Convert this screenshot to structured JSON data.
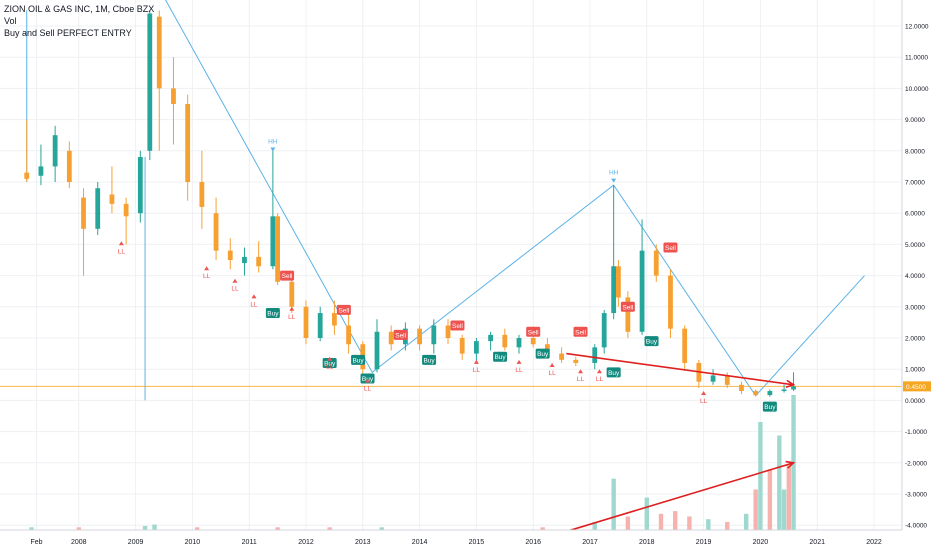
{
  "legend": {
    "symbol_line": "ZION OIL & GAS INC, 1M, Cboe BZX",
    "vol_label": "Vol",
    "indicator_label": "Buy and Sell PERFECT ENTRY"
  },
  "colors": {
    "up": "#26a69a",
    "down": "#f7a032",
    "wick": "#8a8a8a",
    "trendline": "#5bb3e8",
    "arrow": "#e02020",
    "buy": "#138a7e",
    "sell": "#ef5350",
    "marker": "#ef5350",
    "price_line": "#f5a623"
  },
  "price_axis": {
    "ticks": [
      "12.0000",
      "11.0000",
      "10.0000",
      "9.0000",
      "8.0000",
      "7.0000",
      "6.0000",
      "5.0000",
      "4.0000",
      "3.0000",
      "2.0000",
      "1.0000",
      "0.0000",
      "-1.0000",
      "-2.0000",
      "-3.0000",
      "-4.0000"
    ],
    "last_price": "0.4500"
  },
  "time_axis": {
    "ticks": [
      "Feb",
      "2008",
      "2009",
      "2010",
      "2011",
      "2012",
      "2013",
      "2014",
      "2015",
      "2016",
      "2017",
      "2018",
      "2019",
      "2020",
      "2021",
      "2022"
    ]
  },
  "chart_data": {
    "type": "candlestick",
    "title": "ZION OIL & GAS INC, 1M, Cboe BZX",
    "interval": "1M",
    "ylim": [
      -4,
      12.5
    ],
    "x_range": [
      "2007-01",
      "2022-06"
    ],
    "grid": true,
    "price_line": 0.45,
    "series": [
      {
        "name": "price",
        "type": "candles",
        "points": [
          {
            "t": "2007-02",
            "o": 7.3,
            "h": 9.0,
            "l": 7.0,
            "c": 7.1
          },
          {
            "t": "2007-05",
            "o": 7.2,
            "h": 8.2,
            "l": 6.9,
            "c": 7.5
          },
          {
            "t": "2007-08",
            "o": 7.5,
            "h": 8.8,
            "l": 7.0,
            "c": 8.5
          },
          {
            "t": "2007-11",
            "o": 8.0,
            "h": 8.3,
            "l": 6.8,
            "c": 7.0
          },
          {
            "t": "2008-02",
            "o": 6.5,
            "h": 6.8,
            "l": 4.0,
            "c": 5.5
          },
          {
            "t": "2008-05",
            "o": 5.5,
            "h": 7.0,
            "l": 5.3,
            "c": 6.8
          },
          {
            "t": "2008-08",
            "o": 6.6,
            "h": 7.5,
            "l": 6.0,
            "c": 6.3
          },
          {
            "t": "2008-11",
            "o": 6.3,
            "h": 6.5,
            "l": 5.0,
            "c": 5.9
          },
          {
            "t": "2009-02",
            "o": 6.0,
            "h": 8.0,
            "l": 5.7,
            "c": 7.8
          },
          {
            "t": "2009-04",
            "o": 8.0,
            "h": 12.5,
            "l": 7.7,
            "c": 12.4
          },
          {
            "t": "2009-06",
            "o": 12.3,
            "h": 12.5,
            "l": 8.0,
            "c": 10.0
          },
          {
            "t": "2009-09",
            "o": 10.0,
            "h": 11.0,
            "l": 8.2,
            "c": 9.5
          },
          {
            "t": "2009-12",
            "o": 9.5,
            "h": 9.8,
            "l": 6.4,
            "c": 7.0
          },
          {
            "t": "2010-03",
            "o": 7.0,
            "h": 8.0,
            "l": 5.5,
            "c": 6.2
          },
          {
            "t": "2010-06",
            "o": 6.0,
            "h": 6.5,
            "l": 4.5,
            "c": 4.8
          },
          {
            "t": "2010-09",
            "o": 4.8,
            "h": 5.2,
            "l": 4.2,
            "c": 4.5
          },
          {
            "t": "2010-12",
            "o": 4.4,
            "h": 4.9,
            "l": 4.0,
            "c": 4.6
          },
          {
            "t": "2011-03",
            "o": 4.6,
            "h": 5.1,
            "l": 4.1,
            "c": 4.3
          },
          {
            "t": "2011-06",
            "o": 4.3,
            "h": 8.0,
            "l": 4.2,
            "c": 5.9
          },
          {
            "t": "2011-07",
            "o": 5.9,
            "h": 6.0,
            "l": 3.7,
            "c": 3.8
          },
          {
            "t": "2011-10",
            "o": 3.8,
            "h": 4.0,
            "l": 2.8,
            "c": 3.0
          },
          {
            "t": "2012-01",
            "o": 3.0,
            "h": 3.2,
            "l": 1.8,
            "c": 2.0
          },
          {
            "t": "2012-04",
            "o": 2.0,
            "h": 3.0,
            "l": 1.9,
            "c": 2.8
          },
          {
            "t": "2012-07",
            "o": 2.8,
            "h": 3.2,
            "l": 2.1,
            "c": 2.4
          },
          {
            "t": "2012-10",
            "o": 2.4,
            "h": 3.0,
            "l": 1.5,
            "c": 1.8
          },
          {
            "t": "2013-01",
            "o": 1.8,
            "h": 1.9,
            "l": 0.8,
            "c": 1.0
          },
          {
            "t": "2013-04",
            "o": 1.0,
            "h": 2.6,
            "l": 0.9,
            "c": 2.2
          },
          {
            "t": "2013-07",
            "o": 2.2,
            "h": 2.4,
            "l": 1.6,
            "c": 1.8
          },
          {
            "t": "2013-10",
            "o": 1.8,
            "h": 2.5,
            "l": 1.6,
            "c": 2.3
          },
          {
            "t": "2014-01",
            "o": 2.3,
            "h": 2.4,
            "l": 1.6,
            "c": 1.8
          },
          {
            "t": "2014-04",
            "o": 1.8,
            "h": 2.6,
            "l": 1.5,
            "c": 2.4
          },
          {
            "t": "2014-07",
            "o": 2.4,
            "h": 2.6,
            "l": 1.8,
            "c": 2.0
          },
          {
            "t": "2014-10",
            "o": 2.0,
            "h": 2.1,
            "l": 1.3,
            "c": 1.5
          },
          {
            "t": "2015-01",
            "o": 1.5,
            "h": 2.0,
            "l": 1.2,
            "c": 1.9
          },
          {
            "t": "2015-04",
            "o": 1.9,
            "h": 2.2,
            "l": 1.6,
            "c": 2.1
          },
          {
            "t": "2015-07",
            "o": 2.1,
            "h": 2.3,
            "l": 1.6,
            "c": 1.7
          },
          {
            "t": "2015-10",
            "o": 1.7,
            "h": 2.1,
            "l": 1.5,
            "c": 2.0
          },
          {
            "t": "2016-01",
            "o": 2.0,
            "h": 2.2,
            "l": 1.7,
            "c": 1.8
          },
          {
            "t": "2016-04",
            "o": 1.8,
            "h": 2.0,
            "l": 1.4,
            "c": 1.5
          },
          {
            "t": "2016-07",
            "o": 1.5,
            "h": 1.7,
            "l": 1.2,
            "c": 1.3
          },
          {
            "t": "2016-10",
            "o": 1.3,
            "h": 1.4,
            "l": 1.1,
            "c": 1.2
          },
          {
            "t": "2017-02",
            "o": 1.2,
            "h": 1.8,
            "l": 1.0,
            "c": 1.7
          },
          {
            "t": "2017-04",
            "o": 1.7,
            "h": 2.9,
            "l": 1.5,
            "c": 2.8
          },
          {
            "t": "2017-06",
            "o": 2.8,
            "h": 6.9,
            "l": 2.6,
            "c": 4.3
          },
          {
            "t": "2017-07",
            "o": 4.3,
            "h": 4.5,
            "l": 3.0,
            "c": 3.3
          },
          {
            "t": "2017-09",
            "o": 3.3,
            "h": 3.5,
            "l": 2.0,
            "c": 2.2
          },
          {
            "t": "2017-12",
            "o": 2.2,
            "h": 5.8,
            "l": 2.1,
            "c": 4.8
          },
          {
            "t": "2018-03",
            "o": 4.8,
            "h": 5.0,
            "l": 3.8,
            "c": 4.0
          },
          {
            "t": "2018-06",
            "o": 4.0,
            "h": 4.2,
            "l": 2.0,
            "c": 2.3
          },
          {
            "t": "2018-09",
            "o": 2.3,
            "h": 2.4,
            "l": 1.0,
            "c": 1.2
          },
          {
            "t": "2018-12",
            "o": 1.2,
            "h": 1.3,
            "l": 0.4,
            "c": 0.6
          },
          {
            "t": "2019-03",
            "o": 0.6,
            "h": 1.0,
            "l": 0.5,
            "c": 0.8
          },
          {
            "t": "2019-06",
            "o": 0.8,
            "h": 0.9,
            "l": 0.4,
            "c": 0.5
          },
          {
            "t": "2019-09",
            "o": 0.5,
            "h": 0.6,
            "l": 0.2,
            "c": 0.3
          },
          {
            "t": "2019-12",
            "o": 0.3,
            "h": 0.35,
            "l": 0.13,
            "c": 0.17
          },
          {
            "t": "2020-03",
            "o": 0.17,
            "h": 0.35,
            "l": 0.12,
            "c": 0.3
          },
          {
            "t": "2020-06",
            "o": 0.3,
            "h": 0.5,
            "l": 0.25,
            "c": 0.35
          },
          {
            "t": "2020-08",
            "o": 0.35,
            "h": 0.9,
            "l": 0.3,
            "c": 0.45
          }
        ]
      },
      {
        "name": "Vol",
        "type": "volume",
        "max": 100,
        "points": [
          {
            "t": "2007-03",
            "v": 2,
            "up": true
          },
          {
            "t": "2008-01",
            "v": 2,
            "up": false
          },
          {
            "t": "2009-03",
            "v": 3,
            "up": true
          },
          {
            "t": "2009-05",
            "v": 4,
            "up": true
          },
          {
            "t": "2010-02",
            "v": 2,
            "up": false
          },
          {
            "t": "2011-07",
            "v": 2,
            "up": false
          },
          {
            "t": "2012-06",
            "v": 2,
            "up": false
          },
          {
            "t": "2013-05",
            "v": 2,
            "up": true
          },
          {
            "t": "2016-03",
            "v": 2,
            "up": false
          },
          {
            "t": "2017-02",
            "v": 6,
            "up": true
          },
          {
            "t": "2017-06",
            "v": 38,
            "up": true
          },
          {
            "t": "2017-09",
            "v": 10,
            "up": false
          },
          {
            "t": "2018-01",
            "v": 24,
            "up": true
          },
          {
            "t": "2018-04",
            "v": 12,
            "up": false
          },
          {
            "t": "2018-07",
            "v": 14,
            "up": false
          },
          {
            "t": "2018-10",
            "v": 10,
            "up": false
          },
          {
            "t": "2019-02",
            "v": 8,
            "up": true
          },
          {
            "t": "2019-06",
            "v": 6,
            "up": false
          },
          {
            "t": "2019-10",
            "v": 12,
            "up": true
          },
          {
            "t": "2019-12",
            "v": 30,
            "up": false
          },
          {
            "t": "2020-01",
            "v": 80,
            "up": true
          },
          {
            "t": "2020-03",
            "v": 45,
            "up": false
          },
          {
            "t": "2020-05",
            "v": 70,
            "up": true
          },
          {
            "t": "2020-06",
            "v": 30,
            "up": true
          },
          {
            "t": "2020-07",
            "v": 48,
            "up": false
          },
          {
            "t": "2020-08",
            "v": 100,
            "up": true
          }
        ]
      }
    ],
    "signals": [
      {
        "t": "2011-06",
        "type": "Buy",
        "price": 2.8
      },
      {
        "t": "2011-09",
        "type": "Sell",
        "price": 4.0
      },
      {
        "t": "2012-06",
        "type": "Buy",
        "price": 1.2
      },
      {
        "t": "2012-09",
        "type": "Sell",
        "price": 2.9
      },
      {
        "t": "2012-12",
        "type": "Buy",
        "price": 1.3
      },
      {
        "t": "2013-02",
        "type": "Buy",
        "price": 0.7
      },
      {
        "t": "2013-09",
        "type": "Sell",
        "price": 2.1
      },
      {
        "t": "2014-03",
        "type": "Buy",
        "price": 1.3
      },
      {
        "t": "2014-09",
        "type": "Sell",
        "price": 2.4
      },
      {
        "t": "2015-06",
        "type": "Buy",
        "price": 1.4
      },
      {
        "t": "2016-01",
        "type": "Sell",
        "price": 2.2
      },
      {
        "t": "2016-03",
        "type": "Buy",
        "price": 1.5
      },
      {
        "t": "2016-11",
        "type": "Sell",
        "price": 2.2
      },
      {
        "t": "2017-06",
        "type": "Buy",
        "price": 0.9
      },
      {
        "t": "2017-09",
        "type": "Sell",
        "price": 3.0
      },
      {
        "t": "2018-02",
        "type": "Buy",
        "price": 1.9
      },
      {
        "t": "2018-06",
        "type": "Sell",
        "price": 4.9
      },
      {
        "t": "2020-03",
        "type": "Buy",
        "price": -0.2
      }
    ],
    "annotations": [
      {
        "label": "HH",
        "t": "2011-06",
        "price": 8.3
      },
      {
        "label": "HH",
        "t": "2017-06",
        "price": 7.3
      },
      {
        "label": "LL",
        "t": "2008-10",
        "price": 5.1
      },
      {
        "label": "LL",
        "t": "2010-04",
        "price": 4.3
      },
      {
        "label": "LL",
        "t": "2010-10",
        "price": 3.9
      },
      {
        "label": "LL",
        "t": "2011-02",
        "price": 3.4
      },
      {
        "label": "LL",
        "t": "2011-10",
        "price": 3.0
      },
      {
        "label": "LL",
        "t": "2012-06",
        "price": 1.4
      },
      {
        "label": "LL",
        "t": "2013-02",
        "price": 0.7
      },
      {
        "label": "LL",
        "t": "2015-01",
        "price": 1.3
      },
      {
        "label": "LL",
        "t": "2015-10",
        "price": 1.3
      },
      {
        "label": "LL",
        "t": "2016-05",
        "price": 1.2
      },
      {
        "label": "LL",
        "t": "2016-11",
        "price": 1.0
      },
      {
        "label": "LL",
        "t": "2017-03",
        "price": 1.0
      },
      {
        "label": "LL",
        "t": "2019-01",
        "price": 0.3
      }
    ],
    "trendlines": [
      {
        "points": [
          [
            "2009-06",
            13.2
          ],
          [
            "2013-03",
            0.9
          ],
          [
            "2017-06",
            6.9
          ],
          [
            "2019-12",
            0.15
          ],
          [
            "2021-11",
            4.0
          ]
        ]
      },
      {
        "points": [
          [
            "2007-02",
            7.0
          ],
          [
            "2007-02",
            12.5
          ]
        ]
      },
      {
        "points": [
          [
            "2009-03",
            0.0
          ],
          [
            "2009-03",
            7.8
          ]
        ]
      }
    ],
    "arrows": [
      {
        "from": [
          "2016-08",
          1.5
        ],
        "to": [
          "2020-08",
          0.5
        ]
      },
      {
        "from": [
          "2016-08",
          -4.2
        ],
        "to": [
          "2020-08",
          -2.0
        ]
      }
    ]
  }
}
